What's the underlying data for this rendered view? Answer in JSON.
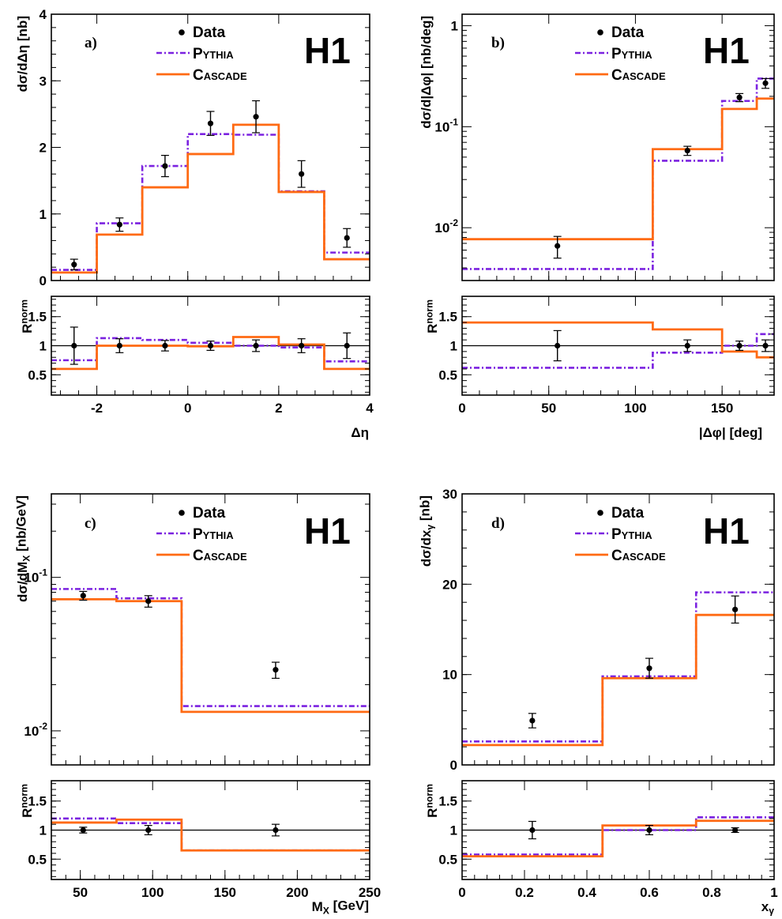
{
  "experiment_label": "H1",
  "legend": [
    "Data",
    "Pythia",
    "Cascade"
  ],
  "colors": {
    "data": "#000000",
    "pythia": "#7b22e0",
    "cascade": "#ff6a13"
  },
  "chart_data": [
    {
      "panel": "a)",
      "type": "line",
      "step": true,
      "yscale": "linear",
      "ylabel": "dσ/dΔη [nb]",
      "xlabel": "Δη",
      "ratio_ylabel": "R^norm",
      "xlim": [
        -3,
        4
      ],
      "ylim": [
        0,
        4
      ],
      "ratio_ylim": [
        0.15,
        1.85
      ],
      "xticks": [
        -2,
        0,
        2,
        4
      ],
      "xticklabels": [
        "-2",
        "0",
        "2",
        "4"
      ],
      "yticks": [
        0,
        1,
        2,
        3,
        4
      ],
      "yticklabels": [
        "0",
        "1",
        "2",
        "3",
        "4"
      ],
      "ratio_yticks": [
        0.5,
        1,
        1.5
      ],
      "ratio_yticklabels": [
        "0.5",
        "1",
        "1.5"
      ],
      "bin_edges": [
        -3,
        -2,
        -1,
        0,
        1,
        2,
        3,
        4
      ],
      "data": {
        "x": [
          -2.5,
          -1.5,
          -0.5,
          0.5,
          1.5,
          2.5,
          3.5
        ],
        "y": [
          0.24,
          0.84,
          1.72,
          2.36,
          2.46,
          1.6,
          0.64
        ],
        "err": [
          0.08,
          0.1,
          0.16,
          0.18,
          0.24,
          0.2,
          0.14
        ]
      },
      "pythia": [
        0.16,
        0.86,
        1.72,
        2.2,
        2.19,
        1.34,
        0.42
      ],
      "cascade": [
        0.12,
        0.69,
        1.4,
        1.9,
        2.34,
        1.33,
        0.32
      ],
      "ratio": {
        "data": {
          "x": [
            -2.5,
            -1.5,
            -0.5,
            0.5,
            1.5,
            2.5,
            3.5
          ],
          "y": [
            1,
            1,
            1,
            1,
            1,
            1,
            1
          ],
          "err": [
            0.32,
            0.12,
            0.09,
            0.08,
            0.1,
            0.12,
            0.22
          ]
        },
        "pythia": [
          0.75,
          1.13,
          1.1,
          1.05,
          1.0,
          0.97,
          0.73
        ],
        "cascade": [
          0.6,
          1.0,
          1.0,
          0.99,
          1.15,
          1.02,
          0.6
        ]
      }
    },
    {
      "panel": "b)",
      "type": "line",
      "step": true,
      "yscale": "log",
      "ylabel": "dσ/d|Δφ| [nb/deg]",
      "xlabel": "|Δφ| [deg]",
      "ratio_ylabel": "R^norm",
      "xlim": [
        0,
        180
      ],
      "ylim": [
        0.003,
        1.3
      ],
      "ratio_ylim": [
        0.15,
        1.85
      ],
      "xticks": [
        0,
        50,
        100,
        150
      ],
      "xticklabels": [
        "0",
        "50",
        "100",
        "150"
      ],
      "yticks": [
        0.01,
        0.1,
        1
      ],
      "yticklabels": [
        "10^-2",
        "10^-1",
        "1"
      ],
      "ratio_yticks": [
        0.5,
        1,
        1.5
      ],
      "ratio_yticklabels": [
        "0.5",
        "1",
        "1.5"
      ],
      "bin_edges": [
        0,
        110,
        150,
        170,
        180
      ],
      "data": {
        "x": [
          55,
          130,
          160,
          175
        ],
        "y": [
          0.0066,
          0.058,
          0.195,
          0.27
        ],
        "err": [
          0.0016,
          0.006,
          0.018,
          0.03
        ]
      },
      "pythia": [
        0.0039,
        0.046,
        0.18,
        0.3
      ],
      "cascade": [
        0.0077,
        0.06,
        0.15,
        0.19
      ],
      "ratio": {
        "data": {
          "x": [
            55,
            130,
            160,
            175
          ],
          "y": [
            1,
            1,
            1,
            1
          ],
          "err": [
            0.26,
            0.1,
            0.08,
            0.1
          ]
        },
        "pythia": [
          0.62,
          0.88,
          1.0,
          1.2
        ],
        "cascade": [
          1.4,
          1.28,
          0.9,
          0.8
        ]
      }
    },
    {
      "panel": "c)",
      "type": "line",
      "step": true,
      "yscale": "log",
      "ylabel": "dσ/dM_X [nb/GeV]",
      "xlabel": "M_X [GeV]",
      "ratio_ylabel": "R^norm",
      "xlim": [
        30,
        250
      ],
      "ylim": [
        0.006,
        0.35
      ],
      "ratio_ylim": [
        0.15,
        1.85
      ],
      "xticks": [
        50,
        100,
        150,
        200,
        250
      ],
      "xticklabels": [
        "50",
        "100",
        "150",
        "200",
        "250"
      ],
      "yticks": [
        0.01,
        0.1
      ],
      "yticklabels": [
        "10^-2",
        "10^-1"
      ],
      "ratio_yticks": [
        0.5,
        1,
        1.5
      ],
      "ratio_yticklabels": [
        "0.5",
        "1",
        "1.5"
      ],
      "bin_edges": [
        30,
        75,
        120,
        250
      ],
      "data": {
        "x": [
          52,
          97,
          185
        ],
        "y": [
          0.076,
          0.07,
          0.025
        ],
        "err": [
          0.005,
          0.006,
          0.003
        ]
      },
      "pythia": [
        0.084,
        0.073,
        0.0145
      ],
      "cascade": [
        0.072,
        0.07,
        0.0133
      ],
      "ratio": {
        "data": {
          "x": [
            52,
            97,
            185
          ],
          "y": [
            1,
            1,
            1
          ],
          "err": [
            0.05,
            0.08,
            0.1
          ]
        },
        "pythia": [
          1.2,
          1.12,
          0.65
        ],
        "cascade": [
          1.13,
          1.18,
          0.65
        ]
      }
    },
    {
      "panel": "d)",
      "type": "line",
      "step": true,
      "yscale": "linear",
      "ylabel": "dσ/dx_γ [nb]",
      "xlabel": "x_γ",
      "ratio_ylabel": "R^norm",
      "xlim": [
        0,
        1
      ],
      "ylim": [
        0,
        30
      ],
      "ratio_ylim": [
        0.15,
        1.85
      ],
      "xticks": [
        0,
        0.2,
        0.4,
        0.6,
        0.8,
        1
      ],
      "xticklabels": [
        "0",
        "0.2",
        "0.4",
        "0.6",
        "0.8",
        "1"
      ],
      "yticks": [
        0,
        10,
        20,
        30
      ],
      "yticklabels": [
        "0",
        "10",
        "20",
        "30"
      ],
      "ratio_yticks": [
        0.5,
        1,
        1.5
      ],
      "ratio_yticklabels": [
        "0.5",
        "1",
        "1.5"
      ],
      "bin_edges": [
        0,
        0.45,
        0.75,
        1
      ],
      "data": {
        "x": [
          0.225,
          0.6,
          0.875
        ],
        "y": [
          4.9,
          10.7,
          17.2
        ],
        "err": [
          0.8,
          1.1,
          1.5
        ]
      },
      "pythia": [
        2.6,
        9.8,
        19.1
      ],
      "cascade": [
        2.2,
        9.6,
        16.6
      ],
      "ratio": {
        "data": {
          "x": [
            0.225,
            0.6,
            0.875
          ],
          "y": [
            1,
            1,
            1
          ],
          "err": [
            0.15,
            0.08,
            0.04
          ]
        },
        "pythia": [
          0.58,
          1.0,
          1.22
        ],
        "cascade": [
          0.55,
          1.08,
          1.16
        ]
      }
    }
  ]
}
